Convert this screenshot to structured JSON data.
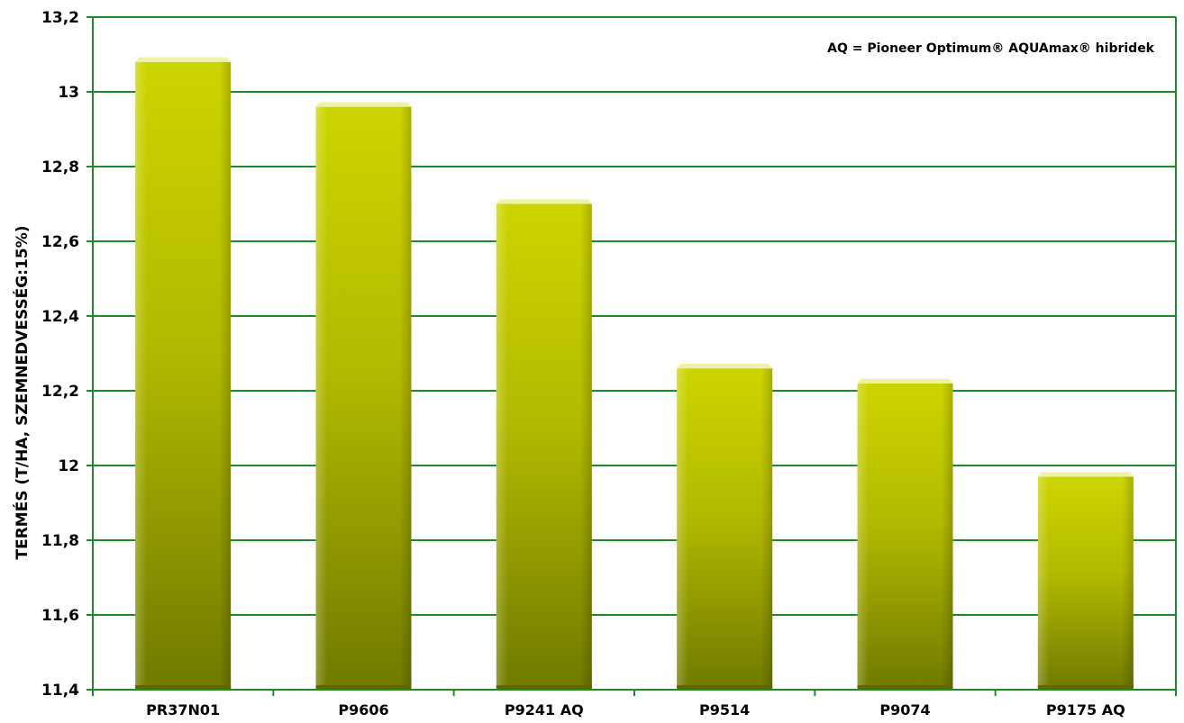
{
  "chart_data": {
    "type": "bar",
    "categories": [
      "PR37N01",
      "P9606",
      "P9241 AQ",
      "P9514",
      "P9074",
      "P9175 AQ"
    ],
    "values": [
      13.08,
      12.96,
      12.7,
      12.26,
      12.22,
      11.97
    ],
    "ylabel": "TERMÉS (T/HA, SZEMNEDVESSÉG:15%)",
    "ylim": [
      11.4,
      13.2
    ],
    "yticks": [
      11.4,
      11.6,
      11.8,
      12,
      12.2,
      12.4,
      12.6,
      12.8,
      13,
      13.2
    ],
    "ytick_labels": [
      "11,4",
      "11,6",
      "11,8",
      "12",
      "12,2",
      "12,4",
      "12,6",
      "12,8",
      "13",
      "13,2"
    ],
    "annotation": "AQ = Pioneer Optimum® AQUAmax® hibridek",
    "grid": true,
    "colors": {
      "bar_top": "#cdd500",
      "bar_bottom": "#6f7a00",
      "bar_cap": "#eef2a8",
      "grid": "#1e8b2a",
      "axis": "#1e8b2a"
    }
  }
}
